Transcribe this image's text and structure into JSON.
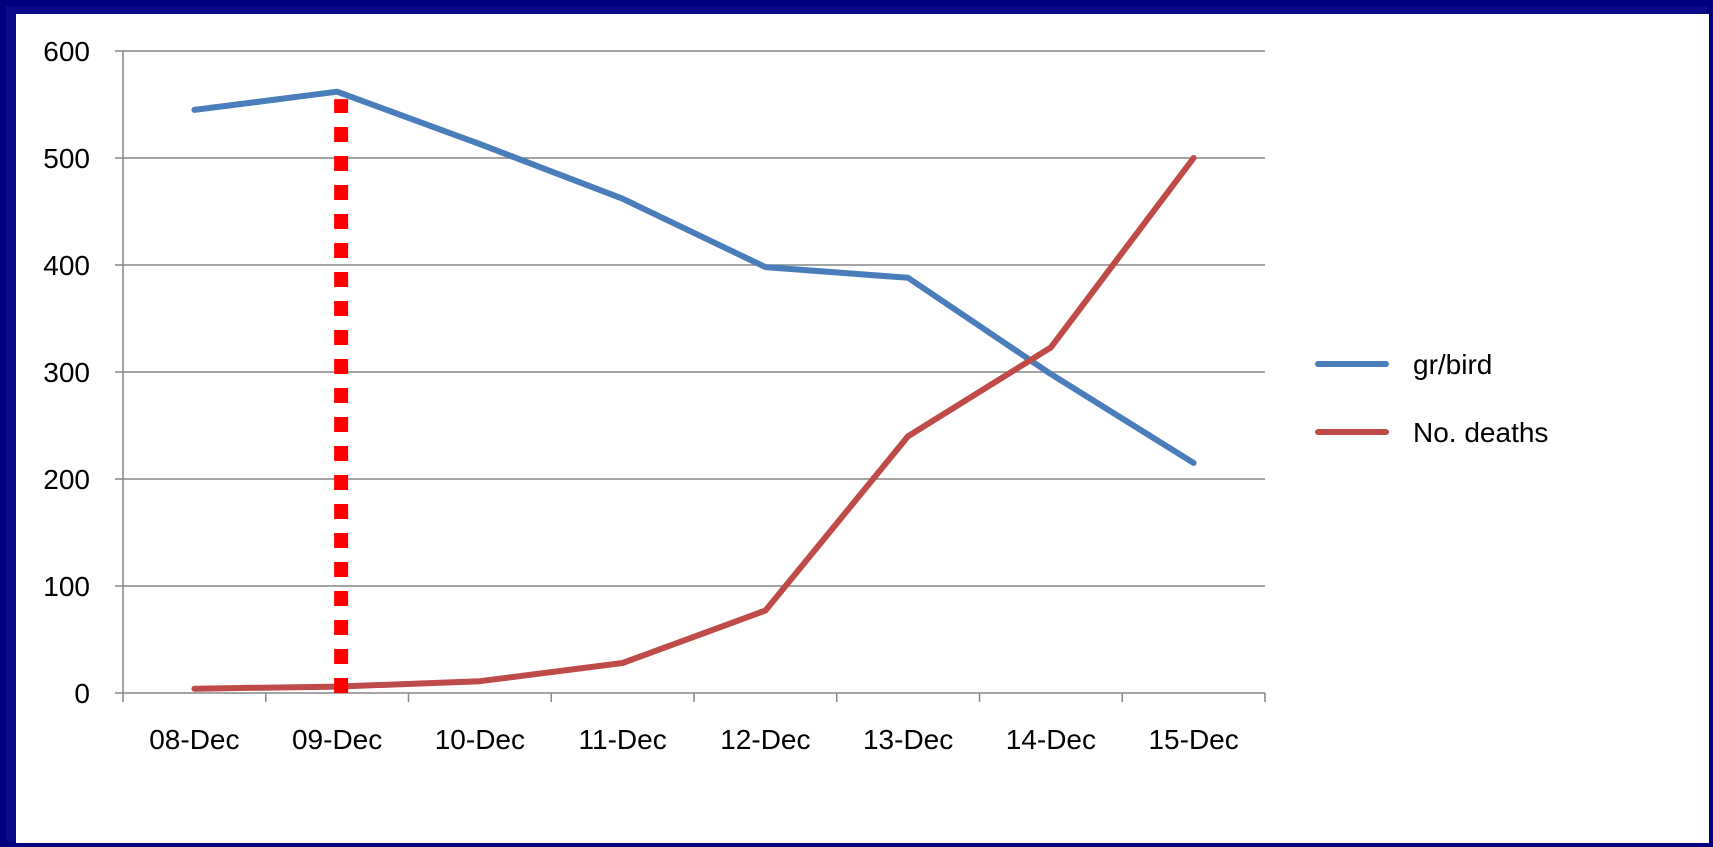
{
  "chart_data": {
    "type": "line",
    "categories": [
      "08-Dec",
      "09-Dec",
      "10-Dec",
      "11-Dec",
      "12-Dec",
      "13-Dec",
      "14-Dec",
      "15-Dec"
    ],
    "ylim": [
      0,
      600
    ],
    "yticks": [
      0,
      100,
      200,
      300,
      400,
      500,
      600
    ],
    "grid": true,
    "legend_position": "right",
    "series": [
      {
        "name": "gr/bird",
        "color": "#4a7ebb",
        "values": [
          545,
          562,
          513,
          462,
          398,
          388,
          298,
          215
        ]
      },
      {
        "name": "No. deaths",
        "color": "#be4b48",
        "values": [
          4,
          6,
          11,
          28,
          77,
          240,
          323,
          500
        ]
      }
    ],
    "annotation": {
      "type": "vertical-dashed-line",
      "category": "09-Dec",
      "color": "#ff0000",
      "from": 0,
      "to": 555
    }
  }
}
